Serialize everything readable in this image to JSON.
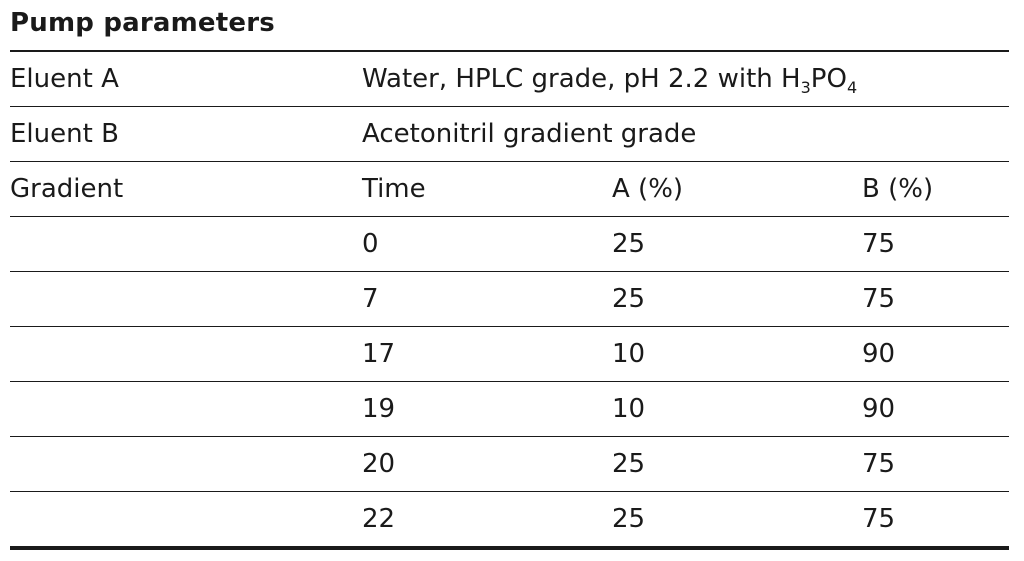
{
  "title": "Pump parameters",
  "eluent_a": {
    "label": "Eluent A",
    "value_prefix": "Water, HPLC grade, pH 2.2 with H",
    "sub1": "3",
    "mid": "PO",
    "sub2": "4"
  },
  "eluent_b": {
    "label": "Eluent B",
    "value": "Acetonitril gradient grade"
  },
  "gradient": {
    "label": "Gradient",
    "headers": [
      "Time",
      "A (%)",
      "B (%)"
    ],
    "rows": [
      {
        "time": "0",
        "a": "25",
        "b": "75"
      },
      {
        "time": "7",
        "a": "25",
        "b": "75"
      },
      {
        "time": "17",
        "a": "10",
        "b": "90"
      },
      {
        "time": "19",
        "a": "10",
        "b": "90"
      },
      {
        "time": "20",
        "a": "25",
        "b": "75"
      },
      {
        "time": "22",
        "a": "25",
        "b": "75"
      }
    ]
  }
}
